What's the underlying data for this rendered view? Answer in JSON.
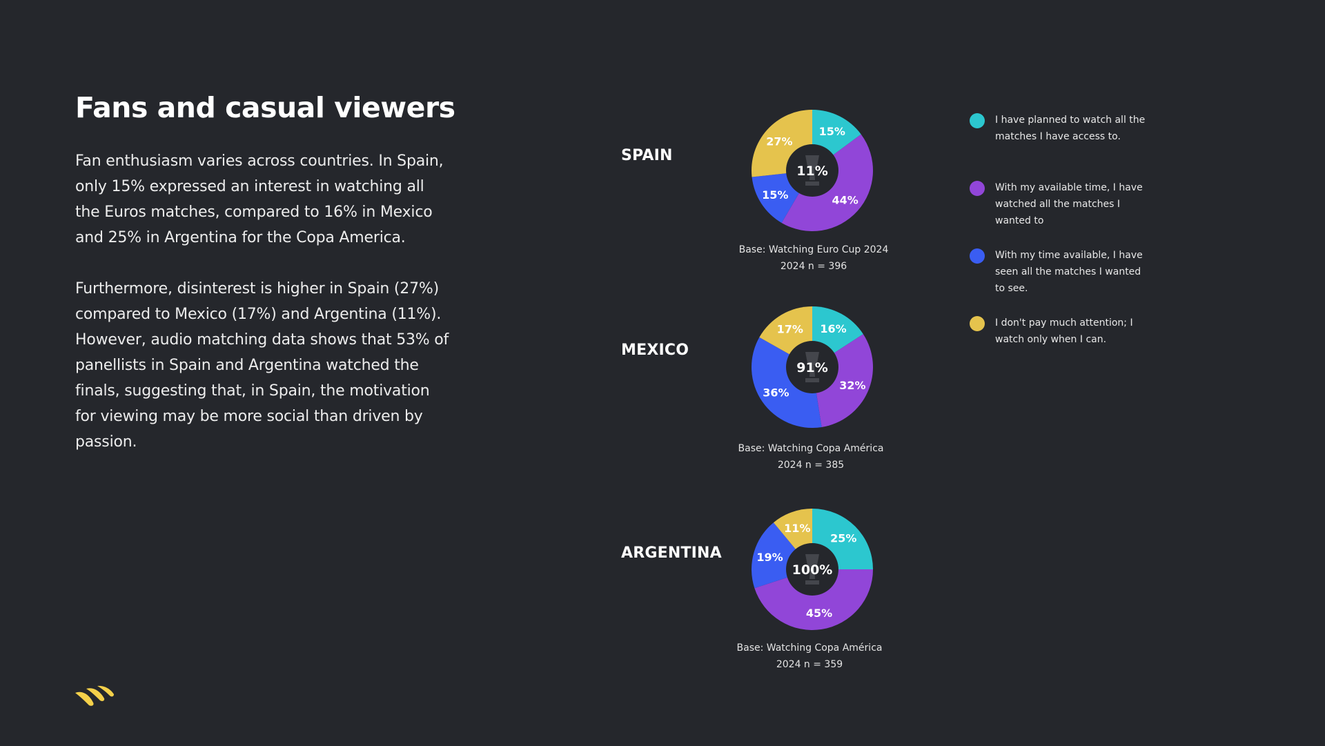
{
  "title": "Fans and casual viewers",
  "paragraphs": [
    "Fan enthusiasm varies across countries. In Spain, only 15% expressed an interest in watching all the Euros matches, compared to 16% in Mexico and 25% in Argentina for the Copa America.",
    "Furthermore, disinterest is higher in Spain (27%) compared to Mexico (17%) and Argentina (11%). However, audio matching data shows that 53% of panellists in Spain and Argentina watched the finals, suggesting that, in Spain, the motivation for viewing may be more social than driven by passion."
  ],
  "colors": {
    "background": "#25272c",
    "teal": "#2cc7cf",
    "purple": "#9146d8",
    "blue": "#3a5df2",
    "yellow": "#e5c34d",
    "center": "#25272c",
    "logo": "#f4d04a"
  },
  "legend": [
    {
      "label": "I have planned to watch all the matches I have access to.",
      "color": "#2cc7cf"
    },
    {
      "label": "With my available time, I have watched all the matches I wanted to",
      "color": "#9146d8"
    },
    {
      "label": "With my time available, I have seen all the matches I wanted to see.",
      "color": "#3a5df2"
    },
    {
      "label": "I don't pay much attention; I watch only when I can.",
      "color": "#e5c34d"
    }
  ],
  "chart_data": [
    {
      "type": "pie",
      "country": "SPAIN",
      "center_label": "11%",
      "values": [
        15,
        44,
        15,
        27
      ],
      "value_labels": [
        "15%",
        "44%",
        "15%",
        "27%"
      ],
      "colors": [
        "#2cc7cf",
        "#9146d8",
        "#3a5df2",
        "#e5c34d"
      ],
      "base_note": "Base: Watching Euro Cup 2024 2024 n = 396"
    },
    {
      "type": "pie",
      "country": "MEXICO",
      "center_label": "91%",
      "values": [
        16,
        32,
        36,
        17
      ],
      "value_labels": [
        "16%",
        "32%",
        "36%",
        "17%"
      ],
      "colors": [
        "#2cc7cf",
        "#9146d8",
        "#3a5df2",
        "#e5c34d"
      ],
      "base_note": "Base: Watching Copa América 2024 n = 385"
    },
    {
      "type": "pie",
      "country": "ARGENTINA",
      "center_label": "100%",
      "values": [
        25,
        45,
        19,
        11
      ],
      "value_labels": [
        "25%",
        "45%",
        "19%",
        "11%"
      ],
      "colors": [
        "#2cc7cf",
        "#9146d8",
        "#3a5df2",
        "#e5c34d"
      ],
      "base_note": "Base: Watching Copa América 2024 n = 359"
    }
  ]
}
